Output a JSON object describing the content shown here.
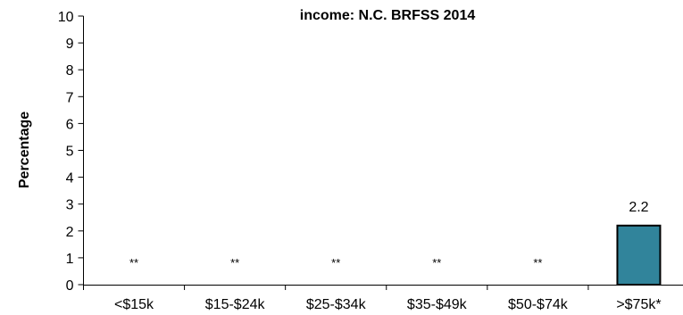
{
  "chart_data": {
    "type": "bar",
    "title": "income: N.C. BRFSS 2014",
    "xlabel": "",
    "ylabel": "Percentage",
    "ylim": [
      0,
      10
    ],
    "yticks": [
      "0",
      "1",
      "2",
      "3",
      "4",
      "5",
      "6",
      "7",
      "8",
      "9",
      "10"
    ],
    "categories": [
      "<$15k",
      "$15-$24k",
      "$25-$34k",
      "$35-$49k",
      "$50-$74k",
      ">$75k*"
    ],
    "values": [
      null,
      null,
      null,
      null,
      null,
      2.2
    ],
    "data_labels": [
      "**",
      "**",
      "**",
      "**",
      "**",
      "2.2"
    ],
    "bar_color": "#31849B",
    "grid": false,
    "legend": "none"
  }
}
